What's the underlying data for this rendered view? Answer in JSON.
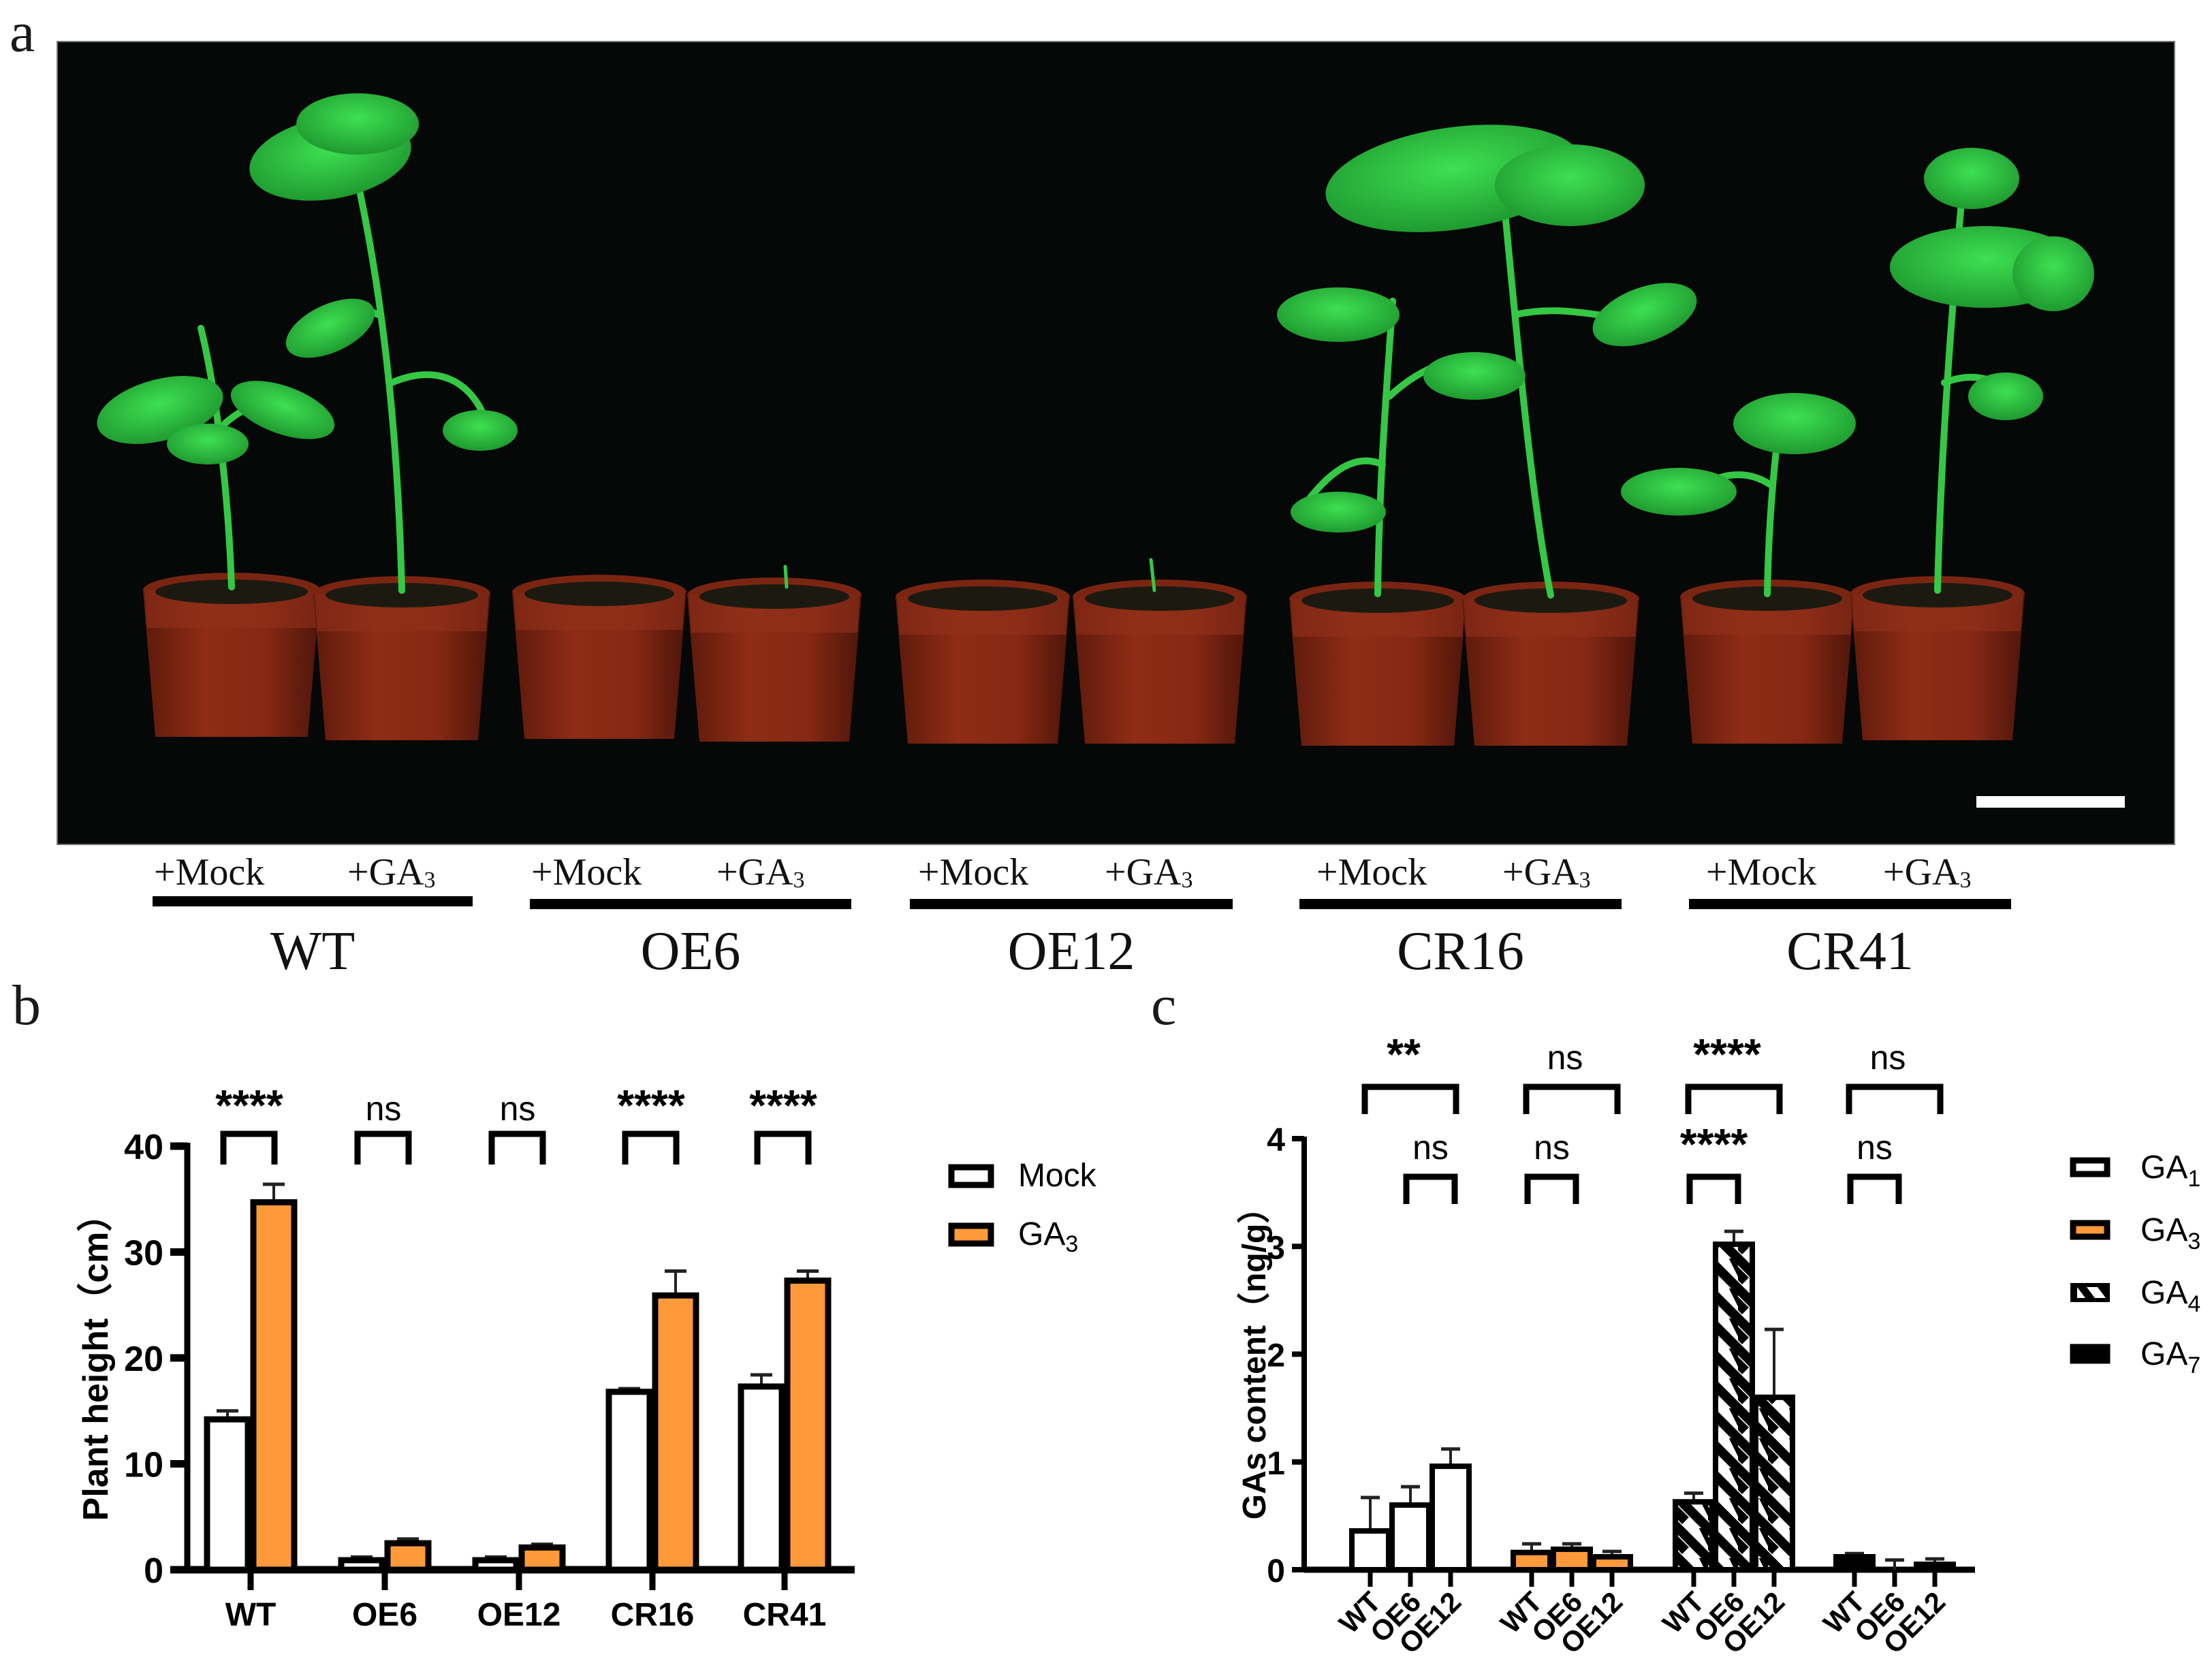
{
  "figure": {
    "panels": [
      "a",
      "b",
      "c"
    ]
  },
  "panel_a": {
    "letter": "a",
    "photo_description": "Tomato plants in red pots on black background",
    "scale_bar": true,
    "groups": [
      {
        "genotype": "WT",
        "mock_label": "+Mock",
        "ga_label": "+GA",
        "ga_sub": "3"
      },
      {
        "genotype": "OE6",
        "mock_label": "+Mock",
        "ga_label": "+GA",
        "ga_sub": "3"
      },
      {
        "genotype": "OE12",
        "mock_label": "+Mock",
        "ga_label": "+GA",
        "ga_sub": "3"
      },
      {
        "genotype": "CR16",
        "mock_label": "+Mock",
        "ga_label": "+GA",
        "ga_sub": "3"
      },
      {
        "genotype": "CR41",
        "mock_label": "+Mock",
        "ga_label": "+GA",
        "ga_sub": "3"
      }
    ]
  },
  "panel_b": {
    "letter": "b",
    "ylabel": "Plant height（cm）",
    "legend": [
      {
        "label": "Mock",
        "sub": "",
        "fill": "#ffffff"
      },
      {
        "label": "GA",
        "sub": "3",
        "fill": "#ff9a3a"
      }
    ]
  },
  "panel_c": {
    "letter": "c",
    "ylabel": "GAs content（ng/g）",
    "legend": [
      {
        "label": "GA",
        "sub": "1",
        "fill": "white"
      },
      {
        "label": "GA",
        "sub": "3",
        "fill": "orange"
      },
      {
        "label": "GA",
        "sub": "4",
        "fill": "hatched"
      },
      {
        "label": "GA",
        "sub": "7",
        "fill": "black"
      }
    ]
  },
  "colors": {
    "orange": "#ff9a3a",
    "black": "#000000",
    "white": "#ffffff",
    "photo_bg": "#050806",
    "pot": "#8a2a14",
    "leaf": "#2ecc40"
  },
  "chart_data": [
    {
      "id": "b",
      "type": "bar",
      "title": "",
      "xlabel": "",
      "ylabel": "Plant height（cm）",
      "ylim": [
        0,
        40
      ],
      "yticks": [
        0,
        10,
        20,
        30,
        40
      ],
      "grid": false,
      "legend_position": "right",
      "categories": [
        "WT",
        "OE6",
        "OE12",
        "CR16",
        "CR41"
      ],
      "series": [
        {
          "name": "Mock",
          "color": "#ffffff",
          "values": [
            14.2,
            0.9,
            0.9,
            16.8,
            17.3
          ],
          "errors": [
            0.8,
            0.3,
            0.3,
            0.3,
            1.1
          ]
        },
        {
          "name": "GA3",
          "color": "#ff9a3a",
          "values": [
            34.7,
            2.5,
            2.1,
            25.9,
            27.3
          ],
          "errors": [
            1.7,
            0.4,
            0.3,
            2.3,
            0.9
          ]
        }
      ],
      "significance": [
        "****",
        "ns",
        "ns",
        "****",
        "****"
      ]
    },
    {
      "id": "c",
      "type": "bar",
      "title": "",
      "xlabel": "",
      "ylabel": "GAs content（ng/g）",
      "ylim": [
        0,
        4
      ],
      "yticks": [
        0,
        1,
        2,
        3,
        4
      ],
      "grid": false,
      "legend_position": "right",
      "groups": [
        "GA1",
        "GA3",
        "GA4",
        "GA7"
      ],
      "categories": [
        "WT",
        "OE6",
        "OE12"
      ],
      "series": [
        {
          "name": "GA1",
          "fill": "white",
          "values": [
            0.36,
            0.6,
            0.96
          ],
          "errors": [
            0.31,
            0.17,
            0.16
          ]
        },
        {
          "name": "GA3",
          "fill": "orange",
          "values": [
            0.16,
            0.19,
            0.12
          ],
          "errors": [
            0.08,
            0.05,
            0.05
          ]
        },
        {
          "name": "GA4",
          "fill": "hatched",
          "values": [
            0.63,
            3.02,
            1.6
          ],
          "errors": [
            0.08,
            0.12,
            0.63
          ]
        },
        {
          "name": "GA7",
          "fill": "black",
          "values": [
            0.12,
            0.0,
            0.05
          ],
          "errors": [
            0.03,
            0.09,
            0.05
          ]
        }
      ],
      "significance": {
        "top_row_WT_vs_OE12": [
          "**",
          "ns",
          "****",
          "ns"
        ],
        "bottom_row": [
          {
            "group": "GA1",
            "label": "ns",
            "span": [
              "OE6",
              "OE12"
            ]
          },
          {
            "group": "GA3",
            "label": "ns",
            "span": [
              "WT",
              "OE6"
            ]
          },
          {
            "group": "GA4",
            "label": "****",
            "span": [
              "WT",
              "OE6"
            ]
          },
          {
            "group": "GA7",
            "label": "ns",
            "span": [
              "WT",
              "OE6"
            ]
          }
        ]
      }
    }
  ]
}
